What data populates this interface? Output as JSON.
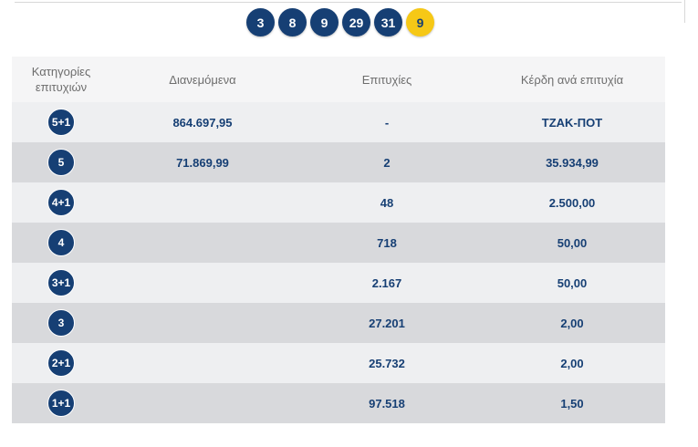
{
  "draw": {
    "numbers": [
      "3",
      "8",
      "9",
      "29",
      "31"
    ],
    "bonus": "9"
  },
  "table": {
    "headers": {
      "category_line1": "Κατηγορίες",
      "category_line2": "επιτυχιών",
      "distributed": "Διανεμόμενα",
      "winners": "Επιτυχίες",
      "prize": "Κέρδη ανά επιτυχία"
    },
    "rows": [
      {
        "category": "5+1",
        "distributed": "864.697,95",
        "winners": "-",
        "prize": "ΤΖΑΚ-ΠΟΤ"
      },
      {
        "category": "5",
        "distributed": "71.869,99",
        "winners": "2",
        "prize": "35.934,99"
      },
      {
        "category": "4+1",
        "distributed": "",
        "winners": "48",
        "prize": "2.500,00"
      },
      {
        "category": "4",
        "distributed": "",
        "winners": "718",
        "prize": "50,00"
      },
      {
        "category": "3+1",
        "distributed": "",
        "winners": "2.167",
        "prize": "50,00"
      },
      {
        "category": "3",
        "distributed": "",
        "winners": "27.201",
        "prize": "2,00"
      },
      {
        "category": "2+1",
        "distributed": "",
        "winners": "25.732",
        "prize": "2,00"
      },
      {
        "category": "1+1",
        "distributed": "",
        "winners": "97.518",
        "prize": "1,50"
      }
    ]
  },
  "colors": {
    "ball_blue": "#163f74",
    "ball_bonus_yellow": "#f6c816",
    "row_light": "#eeeff1",
    "row_dark": "#d8d9dc",
    "header_bg": "#f5f5f6"
  }
}
